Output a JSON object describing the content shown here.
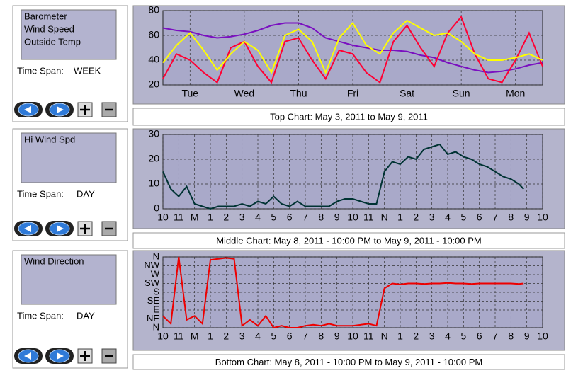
{
  "panels": [
    {
      "time_span_label": "Time Span:",
      "time_span": "WEEK",
      "caption": "Top Chart:  May 3, 2011  to  May 9, 2011"
    },
    {
      "time_span_label": "Time Span:",
      "time_span": "DAY",
      "caption": "Middle Chart:  May 8, 2011 - 10:00 PM  to  May 9, 2011 - 10:00 PM"
    },
    {
      "time_span_label": "Time Span:",
      "time_span": "DAY",
      "caption": "Bottom Chart:  May 8, 2011 - 10:00 PM  to  May 9, 2011 - 10:00 PM"
    }
  ],
  "chart_data": [
    {
      "type": "line",
      "grid": true,
      "xlim": [
        0,
        7
      ],
      "xticks": [
        {
          "value": 0.5,
          "label": "Tue"
        },
        {
          "value": 1.5,
          "label": "Wed"
        },
        {
          "value": 2.5,
          "label": "Thu"
        },
        {
          "value": 3.5,
          "label": "Fri"
        },
        {
          "value": 4.5,
          "label": "Sat"
        },
        {
          "value": 5.5,
          "label": "Sun"
        },
        {
          "value": 6.5,
          "label": "Mon"
        }
      ],
      "ylim": [
        20,
        80
      ],
      "yticks": [
        20,
        40,
        60,
        80
      ],
      "x": [
        0,
        0.25,
        0.5,
        0.75,
        1,
        1.25,
        1.5,
        1.75,
        2,
        2.25,
        2.5,
        2.75,
        3,
        3.25,
        3.5,
        3.75,
        4,
        4.25,
        4.5,
        4.75,
        5,
        5.25,
        5.5,
        5.75,
        6,
        6.25,
        6.5,
        6.75,
        7
      ],
      "series": [
        {
          "name": "Barometer",
          "color": "#7a10c0",
          "values": [
            66,
            64,
            63,
            60,
            58,
            59,
            61,
            64,
            68,
            70,
            70,
            66,
            58,
            55,
            52,
            50,
            48,
            48,
            47,
            44,
            42,
            38,
            35,
            32,
            30,
            31,
            33,
            36,
            38
          ]
        },
        {
          "name": "Wind Speed",
          "color": "#ff0033",
          "values": [
            25,
            45,
            40,
            30,
            22,
            50,
            55,
            35,
            22,
            55,
            58,
            40,
            25,
            48,
            45,
            30,
            22,
            55,
            68,
            50,
            35,
            62,
            75,
            45,
            25,
            22,
            40,
            62,
            35
          ]
        },
        {
          "name": "Outside Temp",
          "color": "#ffff00",
          "values": [
            38,
            52,
            62,
            48,
            32,
            45,
            55,
            48,
            30,
            60,
            65,
            55,
            30,
            58,
            70,
            52,
            45,
            62,
            72,
            66,
            60,
            62,
            55,
            45,
            40,
            40,
            42,
            45,
            40
          ]
        }
      ]
    },
    {
      "type": "line",
      "grid": true,
      "xlim": [
        0,
        24
      ],
      "xticks": [
        {
          "value": 0,
          "label": "10"
        },
        {
          "value": 1,
          "label": "11"
        },
        {
          "value": 2,
          "label": "M"
        },
        {
          "value": 3,
          "label": "1"
        },
        {
          "value": 4,
          "label": "2"
        },
        {
          "value": 5,
          "label": "3"
        },
        {
          "value": 6,
          "label": "4"
        },
        {
          "value": 7,
          "label": "5"
        },
        {
          "value": 8,
          "label": "6"
        },
        {
          "value": 9,
          "label": "7"
        },
        {
          "value": 10,
          "label": "8"
        },
        {
          "value": 11,
          "label": "9"
        },
        {
          "value": 12,
          "label": "10"
        },
        {
          "value": 13,
          "label": "11"
        },
        {
          "value": 14,
          "label": "N"
        },
        {
          "value": 15,
          "label": "1"
        },
        {
          "value": 16,
          "label": "2"
        },
        {
          "value": 17,
          "label": "3"
        },
        {
          "value": 18,
          "label": "4"
        },
        {
          "value": 19,
          "label": "5"
        },
        {
          "value": 20,
          "label": "6"
        },
        {
          "value": 21,
          "label": "7"
        },
        {
          "value": 22,
          "label": "8"
        },
        {
          "value": 23,
          "label": "9"
        },
        {
          "value": 24,
          "label": "10"
        }
      ],
      "ylim": [
        0,
        30
      ],
      "yticks": [
        0,
        10,
        20,
        30
      ],
      "x": [
        0,
        0.5,
        1,
        1.5,
        2,
        2.5,
        3,
        3.5,
        4,
        4.5,
        5,
        5.5,
        6,
        6.5,
        7,
        7.5,
        8,
        8.5,
        9,
        9.5,
        10,
        10.5,
        11,
        11.5,
        12,
        12.5,
        13,
        13.5,
        14,
        14.5,
        15,
        15.5,
        16,
        16.5,
        17,
        17.5,
        18,
        18.5,
        19,
        19.5,
        20,
        20.5,
        21,
        21.5,
        22,
        22.5,
        22.8
      ],
      "series": [
        {
          "name": "Hi Wind Spd",
          "color": "#003333",
          "values": [
            15,
            8,
            5,
            9,
            2,
            1,
            0,
            1,
            1,
            1,
            2,
            1,
            3,
            2,
            5,
            2,
            1,
            3,
            1,
            1,
            1,
            1,
            3,
            4,
            4,
            3,
            2,
            2,
            15,
            19,
            18,
            21,
            20,
            24,
            25,
            26,
            22,
            23,
            21,
            20,
            18,
            17,
            15,
            13,
            12,
            10,
            8
          ]
        }
      ]
    },
    {
      "type": "line",
      "grid": true,
      "xlim": [
        0,
        24
      ],
      "xticks": [
        {
          "value": 0,
          "label": "10"
        },
        {
          "value": 1,
          "label": "11"
        },
        {
          "value": 2,
          "label": "M"
        },
        {
          "value": 3,
          "label": "1"
        },
        {
          "value": 4,
          "label": "2"
        },
        {
          "value": 5,
          "label": "3"
        },
        {
          "value": 6,
          "label": "4"
        },
        {
          "value": 7,
          "label": "5"
        },
        {
          "value": 8,
          "label": "6"
        },
        {
          "value": 9,
          "label": "7"
        },
        {
          "value": 10,
          "label": "8"
        },
        {
          "value": 11,
          "label": "9"
        },
        {
          "value": 12,
          "label": "10"
        },
        {
          "value": 13,
          "label": "11"
        },
        {
          "value": 14,
          "label": "N"
        },
        {
          "value": 15,
          "label": "1"
        },
        {
          "value": 16,
          "label": "2"
        },
        {
          "value": 17,
          "label": "3"
        },
        {
          "value": 18,
          "label": "4"
        },
        {
          "value": 19,
          "label": "5"
        },
        {
          "value": 20,
          "label": "6"
        },
        {
          "value": 21,
          "label": "7"
        },
        {
          "value": 22,
          "label": "8"
        },
        {
          "value": 23,
          "label": "9"
        },
        {
          "value": 24,
          "label": "10"
        }
      ],
      "ylim": [
        0,
        360
      ],
      "yticks": [
        {
          "value": 0,
          "label": "N"
        },
        {
          "value": 45,
          "label": "NE"
        },
        {
          "value": 90,
          "label": "E"
        },
        {
          "value": 135,
          "label": "SE"
        },
        {
          "value": 180,
          "label": "S"
        },
        {
          "value": 225,
          "label": "SW"
        },
        {
          "value": 270,
          "label": "W"
        },
        {
          "value": 315,
          "label": "NW"
        },
        {
          "value": 360,
          "label": "N"
        }
      ],
      "x": [
        0,
        0.5,
        1,
        1.5,
        2,
        2.5,
        3,
        3.5,
        4,
        4.5,
        5,
        5.5,
        6,
        6.5,
        7,
        7.5,
        8,
        8.5,
        9,
        9.5,
        10,
        10.5,
        11,
        11.5,
        12,
        12.5,
        13,
        13.5,
        14,
        14.5,
        15,
        15.5,
        16,
        16.5,
        17,
        17.5,
        18,
        18.5,
        19,
        19.5,
        20,
        20.5,
        21,
        21.5,
        22,
        22.5,
        22.8
      ],
      "series": [
        {
          "name": "Wind Direction",
          "color": "#ee0000",
          "values": [
            60,
            20,
            360,
            40,
            60,
            20,
            345,
            350,
            355,
            350,
            10,
            40,
            10,
            60,
            0,
            10,
            0,
            0,
            10,
            15,
            10,
            20,
            10,
            10,
            10,
            15,
            20,
            10,
            200,
            225,
            220,
            225,
            225,
            222,
            225,
            225,
            228,
            225,
            225,
            222,
            225,
            225,
            225,
            225,
            225,
            222,
            225
          ]
        }
      ]
    }
  ]
}
